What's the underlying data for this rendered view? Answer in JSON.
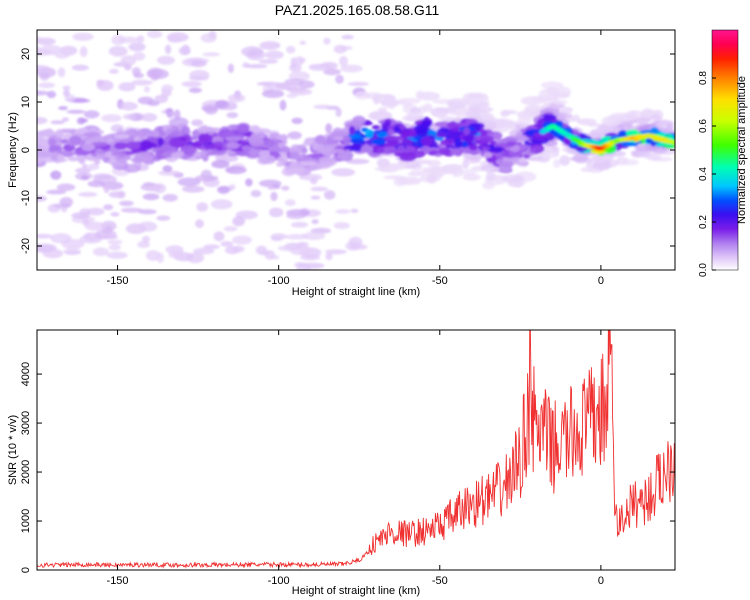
{
  "figure": {
    "title": "PAZ1.2025.165.08.58.G11"
  },
  "chart_data": [
    {
      "type": "heatmap",
      "title": "PAZ1.2025.165.08.58.G11",
      "xlabel": "Height of straight line (km)",
      "ylabel": "Frequency (Hz)",
      "xlim": [
        -175,
        23
      ],
      "ylim": [
        -25,
        25
      ],
      "xticks": [
        -150,
        -100,
        -50,
        0
      ],
      "yticks": [
        -20,
        -10,
        0,
        10,
        20
      ],
      "colorbar": {
        "label": "Normalized spectral amplitude",
        "range": [
          0,
          1
        ],
        "ticks": [
          0.0,
          0.2,
          0.4,
          0.6,
          0.8
        ],
        "colors": [
          "#ffffff",
          "#e0c8f8",
          "#b080f0",
          "#7a1ee8",
          "#3b0ff0",
          "#0050ff",
          "#00c8ff",
          "#00ffb0",
          "#40ff00",
          "#c8ff00",
          "#ffe000",
          "#ff8000",
          "#ff2000",
          "#ff0050",
          "#ff1490"
        ]
      },
      "ridge": {
        "name": "",
        "x": [
          -175,
          -160,
          -150,
          -140,
          -130,
          -120,
          -110,
          -100,
          -95,
          -90,
          -85,
          -80,
          -75,
          -70,
          -65,
          -60,
          -55,
          -50,
          -45,
          -40,
          -35,
          -30,
          -25,
          -20,
          -15,
          -10,
          -5,
          0,
          5,
          10,
          15,
          20,
          23
        ],
        "y": [
          0.5,
          0.8,
          0.5,
          1.0,
          1.5,
          1.5,
          2.0,
          0.0,
          -1.5,
          -1.0,
          0.0,
          1.0,
          3.0,
          2.5,
          3.0,
          1.5,
          3.0,
          2.5,
          2.5,
          3.0,
          1.5,
          -1.5,
          0.5,
          3.0,
          5.0,
          3.0,
          1.0,
          0.3,
          2.0,
          2.5,
          3.0,
          2.0,
          1.5
        ],
        "amplitude": [
          0.1,
          0.15,
          0.15,
          0.2,
          0.2,
          0.2,
          0.2,
          0.15,
          0.12,
          0.15,
          0.15,
          0.2,
          0.35,
          0.35,
          0.3,
          0.3,
          0.35,
          0.3,
          0.3,
          0.35,
          0.25,
          0.2,
          0.2,
          0.3,
          0.45,
          0.4,
          0.6,
          0.9,
          0.55,
          0.75,
          0.65,
          0.7,
          0.6
        ]
      }
    },
    {
      "type": "line",
      "xlabel": "Height of straight line (km)",
      "ylabel": "SNR (10 * v/v)",
      "xlim": [
        -175,
        23
      ],
      "ylim": [
        0,
        4900
      ],
      "xticks": [
        -150,
        -100,
        -50,
        0
      ],
      "yticks": [
        0,
        1000,
        2000,
        3000,
        4000
      ],
      "color": "#f03030",
      "series": [
        {
          "name": "",
          "x": [
            -175,
            -160,
            -150,
            -140,
            -130,
            -120,
            -110,
            -100,
            -90,
            -80,
            -75,
            -70,
            -65,
            -60,
            -55,
            -50,
            -45,
            -40,
            -35,
            -30,
            -25,
            -22,
            -20,
            -17,
            -15,
            -10,
            -5,
            0,
            2,
            3,
            4,
            5,
            10,
            15,
            20,
            23
          ],
          "y": [
            100,
            110,
            100,
            110,
            100,
            105,
            110,
            110,
            110,
            120,
            200,
            500,
            700,
            650,
            700,
            800,
            1000,
            1200,
            1300,
            1500,
            2000,
            3000,
            2500,
            2400,
            2200,
            2400,
            2600,
            2850,
            3000,
            4000,
            1500,
            800,
            1200,
            1300,
            1800,
            2100
          ]
        }
      ]
    }
  ]
}
